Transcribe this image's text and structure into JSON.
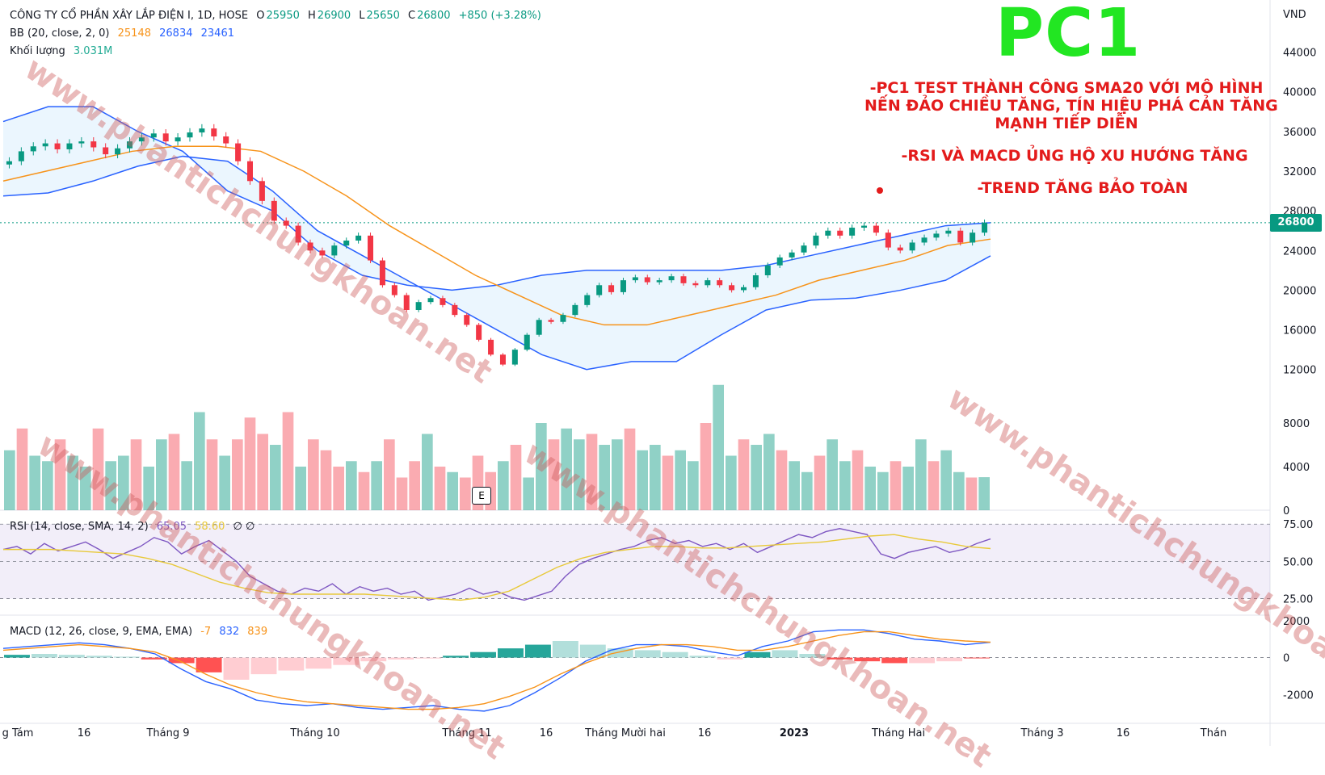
{
  "legend": {
    "company": "CÔNG TY CỔ PHẦN XÂY LẮP ĐIỆN I, 1D, HOSE",
    "open_key": "O",
    "open": "25950",
    "high_key": "H",
    "high": "26900",
    "low_key": "L",
    "low": "25650",
    "close_key": "C",
    "close": "26800",
    "change": "+850 (+3.28%)",
    "bb_label": "BB (20, close, 2, 0)",
    "bb_basis": "25148",
    "bb_upper": "26834",
    "bb_lower": "23461",
    "volume_label": "Khối lượng",
    "volume_value": "3.031M",
    "rsi_label": "RSI (14, close, SMA, 14, 2)",
    "rsi_value": "65.05",
    "rsi_sma": "58.60",
    "rsi_extra": "∅ ∅",
    "macd_label": "MACD (12, 26, close, 9, EMA, EMA)",
    "macd_hist": "-7",
    "macd_line": "832",
    "macd_signal": "839"
  },
  "annotations": {
    "ticker": "PC1",
    "line1": "-PC1 TEST THÀNH CÔNG SMA20 VỚI MÔ HÌNH",
    "line2": "NẾN ĐẢO CHIỀU TĂNG, TÍN HIỆU PHÁ CẢN TĂNG",
    "line3": "MẠNH TIẾP DIỄN",
    "line4": "-RSI VÀ MACD ỦNG HỘ XU HƯỚNG TĂNG",
    "line5": "-TREND TĂNG BẢO TOÀN",
    "watermark": "www.phantichchungkhoan.net"
  },
  "earnings_marker": "E",
  "current_price_tag": "26800",
  "colors": {
    "up": "#089981",
    "down": "#f23645",
    "bb": "#2962ff",
    "basis": "#f7931a",
    "rsi": "#7e57c2",
    "rsi_sma": "#e8c93a",
    "macd": "#2962ff",
    "signal": "#f7931a",
    "ticker": "#22e622",
    "annotation": "#e31b1b"
  },
  "chart_data": [
    {
      "type": "candlestick",
      "title": "CÔNG TY CỔ PHẦN XÂY LẮP ĐIỆN I, 1D, HOSE",
      "currency": "VND",
      "y_ticks": [
        0,
        4000,
        8000,
        12000,
        16000,
        20000,
        24000,
        28000,
        32000,
        36000,
        40000,
        44000
      ],
      "price_ylim": [
        11000,
        46000
      ],
      "x_labels": [
        "g Tám",
        "16",
        "Tháng 9",
        "Tháng 10",
        "Tháng 11",
        "16",
        "Tháng Mười hai",
        "16",
        "2023",
        "Tháng Hai",
        "Tháng 3",
        "16",
        "Thán"
      ],
      "close_path": [
        33000,
        34000,
        34500,
        34800,
        34200,
        34800,
        35000,
        34400,
        33700,
        34300,
        35000,
        35400,
        35800,
        35000,
        35400,
        35900,
        36300,
        35500,
        34800,
        33000,
        31000,
        29000,
        27000,
        26500,
        24800,
        24000,
        23500,
        24500,
        25000,
        25500,
        23000,
        20500,
        19500,
        18000,
        18800,
        19200,
        18500,
        17500,
        16500,
        15000,
        13500,
        12500,
        14000,
        15500,
        17000,
        16800,
        17500,
        18500,
        19500,
        20500,
        19800,
        21000,
        21300,
        20800,
        21000,
        21400,
        20700,
        20500,
        21000,
        20500,
        20000,
        20300,
        21500,
        22500,
        23300,
        23800,
        24500,
        25500,
        26000,
        25500,
        26300,
        26500,
        25800,
        24300,
        24000,
        24800,
        25300,
        25700,
        26000,
        24800,
        25800,
        26800
      ],
      "bb_upper_path": [
        37000,
        38500,
        38500,
        36000,
        34000,
        30000,
        28000,
        24000,
        21500,
        20500,
        20000,
        20500,
        21500,
        22000,
        22000,
        22000,
        22000,
        22500,
        23500,
        24500,
        25500,
        26500,
        26800
      ],
      "bb_basis_path": [
        31000,
        32000,
        33000,
        34000,
        34500,
        34500,
        34000,
        32000,
        29500,
        26500,
        24000,
        21500,
        19500,
        17500,
        16500,
        16500,
        17500,
        18500,
        19500,
        21000,
        22000,
        23000,
        24500,
        25148
      ],
      "bb_lower_path": [
        29500,
        29800,
        31000,
        32500,
        33500,
        33000,
        30000,
        26000,
        23500,
        21000,
        18500,
        16000,
        13500,
        12000,
        12800,
        12800,
        15500,
        18000,
        19000,
        19200,
        20000,
        21000,
        23461
      ],
      "volume_path_k": [
        5500,
        7500,
        5000,
        4500,
        6500,
        5000,
        4000,
        7500,
        4500,
        5000,
        6500,
        4000,
        6500,
        7000,
        4500,
        9000,
        6500,
        5000,
        6500,
        8500,
        7000,
        6000,
        9000,
        4000,
        6500,
        5500,
        4000,
        4500,
        3500,
        4500,
        6500,
        3000,
        4500,
        7000,
        4000,
        3500,
        3000,
        5000,
        3500,
        4500,
        6000,
        3000,
        8000,
        6500,
        7500,
        6500,
        7000,
        6000,
        6500,
        7500,
        5500,
        6000,
        5000,
        5500,
        4500,
        8000,
        11500,
        5000,
        6500,
        6000,
        7000,
        5500,
        4500,
        3500,
        5000,
        6500,
        4500,
        5500,
        4000,
        3500,
        4500,
        4000,
        6500,
        4500,
        5500,
        3500,
        3000,
        3031
      ],
      "rsi_path": [
        58,
        60,
        55,
        62,
        57,
        60,
        63,
        58,
        52,
        56,
        60,
        66,
        63,
        55,
        60,
        64,
        57,
        50,
        40,
        35,
        30,
        28,
        32,
        30,
        35,
        28,
        33,
        30,
        32,
        28,
        30,
        24,
        26,
        28,
        32,
        28,
        30,
        26,
        24,
        27,
        30,
        40,
        48,
        52,
        55,
        58,
        60,
        64,
        66,
        62,
        64,
        60,
        62,
        58,
        62,
        56,
        60,
        64,
        68,
        66,
        70,
        72,
        70,
        68,
        55,
        52,
        56,
        58,
        60,
        56,
        58,
        62,
        65.05
      ],
      "rsi_sma_path": [
        58,
        58,
        58,
        57,
        56,
        55,
        52,
        48,
        42,
        36,
        32,
        29,
        28,
        28,
        28,
        28,
        27,
        26,
        25,
        24,
        26,
        30,
        38,
        46,
        52,
        56,
        58,
        60,
        60,
        59,
        59,
        60,
        61,
        62,
        63,
        65,
        67,
        68,
        65,
        63,
        60,
        58.6
      ],
      "rsi_ylim": [
        15,
        80
      ],
      "rsi_ticks": [
        25,
        50,
        75
      ],
      "macd_path": [
        500,
        600,
        700,
        800,
        700,
        500,
        200,
        -600,
        -1300,
        -1700,
        -2300,
        -2500,
        -2600,
        -2500,
        -2700,
        -2800,
        -2700,
        -2600,
        -2800,
        -2900,
        -2600,
        -1900,
        -1100,
        -200,
        400,
        700,
        700,
        600,
        300,
        100,
        600,
        900,
        1400,
        1500,
        1500,
        1300,
        1000,
        900,
        700,
        832
      ],
      "signal_path": [
        400,
        500,
        600,
        700,
        600,
        500,
        300,
        -200,
        -900,
        -1500,
        -1900,
        -2200,
        -2400,
        -2500,
        -2600,
        -2700,
        -2800,
        -2800,
        -2700,
        -2500,
        -2100,
        -1600,
        -900,
        -300,
        200,
        500,
        700,
        700,
        600,
        400,
        400,
        600,
        900,
        1200,
        1400,
        1400,
        1200,
        1000,
        900,
        839
      ],
      "macd_hist_path": [
        150,
        200,
        150,
        100,
        50,
        -100,
        -300,
        -800,
        -1200,
        -900,
        -700,
        -600,
        -400,
        -200,
        -100,
        -50,
        100,
        300,
        500,
        700,
        900,
        700,
        500,
        400,
        300,
        100,
        -100,
        300,
        400,
        200,
        -100,
        -200,
        -300,
        -300,
        -200,
        -7
      ],
      "macd_ylim": [
        -3300,
        2300
      ],
      "macd_ticks": [
        -2000,
        0,
        2000
      ]
    }
  ]
}
